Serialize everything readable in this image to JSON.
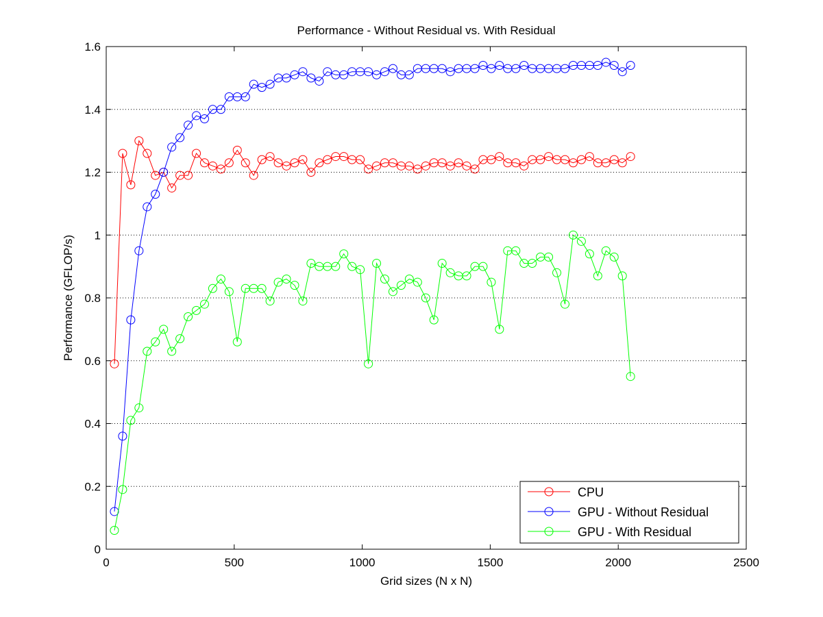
{
  "chart_data": {
    "type": "line",
    "title": "Performance - Without Residual vs. With Residual",
    "xlabel": "Grid sizes (N x N)",
    "ylabel": "Performance (GFLOP/s)",
    "xlim": [
      0,
      2500
    ],
    "ylim": [
      0,
      1.6
    ],
    "xticks": [
      0,
      500,
      1000,
      1500,
      2000,
      2500
    ],
    "yticks": [
      0,
      0.2,
      0.4,
      0.6,
      0.8,
      1,
      1.2,
      1.4,
      1.6
    ],
    "xtick_labels": [
      "0",
      "500",
      "1000",
      "1500",
      "2000",
      "2500"
    ],
    "ytick_labels": [
      "0",
      "0.2",
      "0.4",
      "0.6",
      "0.8",
      "1",
      "1.2",
      "1.4",
      "1.6"
    ],
    "grid": "horizontal dotted",
    "legend_position": "bottom-right",
    "marker": "open-circle",
    "x": [
      32,
      64,
      96,
      128,
      160,
      192,
      224,
      256,
      288,
      320,
      352,
      384,
      416,
      448,
      480,
      512,
      544,
      576,
      608,
      640,
      672,
      704,
      736,
      768,
      800,
      832,
      864,
      896,
      928,
      960,
      992,
      1024,
      1056,
      1088,
      1120,
      1152,
      1184,
      1216,
      1248,
      1280,
      1312,
      1344,
      1376,
      1408,
      1440,
      1472,
      1504,
      1536,
      1568,
      1600,
      1632,
      1664,
      1696,
      1728,
      1760,
      1792,
      1824,
      1856,
      1888,
      1920,
      1952,
      1984,
      2016,
      2048
    ],
    "series": [
      {
        "name": "CPU",
        "color": "#ff0000",
        "values": [
          0.59,
          1.26,
          1.16,
          1.3,
          1.26,
          1.19,
          1.2,
          1.15,
          1.19,
          1.19,
          1.26,
          1.23,
          1.22,
          1.21,
          1.23,
          1.27,
          1.23,
          1.19,
          1.24,
          1.25,
          1.23,
          1.22,
          1.23,
          1.24,
          1.2,
          1.23,
          1.24,
          1.25,
          1.25,
          1.24,
          1.24,
          1.21,
          1.22,
          1.23,
          1.23,
          1.22,
          1.22,
          1.21,
          1.22,
          1.23,
          1.23,
          1.22,
          1.23,
          1.22,
          1.21,
          1.24,
          1.24,
          1.25,
          1.23,
          1.23,
          1.22,
          1.24,
          1.24,
          1.25,
          1.24,
          1.24,
          1.23,
          1.24,
          1.25,
          1.23,
          1.23,
          1.24,
          1.23,
          1.25
        ]
      },
      {
        "name": "GPU - Without Residual",
        "color": "#0000ff",
        "values": [
          0.12,
          0.36,
          0.73,
          0.95,
          1.09,
          1.13,
          1.2,
          1.28,
          1.31,
          1.35,
          1.38,
          1.37,
          1.4,
          1.4,
          1.44,
          1.44,
          1.44,
          1.48,
          1.47,
          1.48,
          1.5,
          1.5,
          1.51,
          1.52,
          1.5,
          1.49,
          1.52,
          1.51,
          1.51,
          1.52,
          1.52,
          1.52,
          1.51,
          1.52,
          1.53,
          1.51,
          1.51,
          1.53,
          1.53,
          1.53,
          1.53,
          1.52,
          1.53,
          1.53,
          1.53,
          1.54,
          1.53,
          1.54,
          1.53,
          1.53,
          1.54,
          1.53,
          1.53,
          1.53,
          1.53,
          1.53,
          1.54,
          1.54,
          1.54,
          1.54,
          1.55,
          1.54,
          1.52,
          1.54
        ]
      },
      {
        "name": "GPU - With Residual",
        "color": "#00ff00",
        "values": [
          0.06,
          0.19,
          0.41,
          0.45,
          0.63,
          0.66,
          0.7,
          0.63,
          0.67,
          0.74,
          0.76,
          0.78,
          0.83,
          0.86,
          0.82,
          0.66,
          0.83,
          0.83,
          0.83,
          0.79,
          0.85,
          0.86,
          0.84,
          0.79,
          0.91,
          0.9,
          0.9,
          0.9,
          0.94,
          0.9,
          0.89,
          0.59,
          0.91,
          0.86,
          0.82,
          0.84,
          0.86,
          0.85,
          0.8,
          0.73,
          0.91,
          0.88,
          0.87,
          0.87,
          0.9,
          0.9,
          0.85,
          0.7,
          0.95,
          0.95,
          0.91,
          0.91,
          0.93,
          0.93,
          0.88,
          0.78,
          1.0,
          0.98,
          0.94,
          0.87,
          0.95,
          0.93,
          0.87,
          0.55
        ]
      }
    ]
  }
}
